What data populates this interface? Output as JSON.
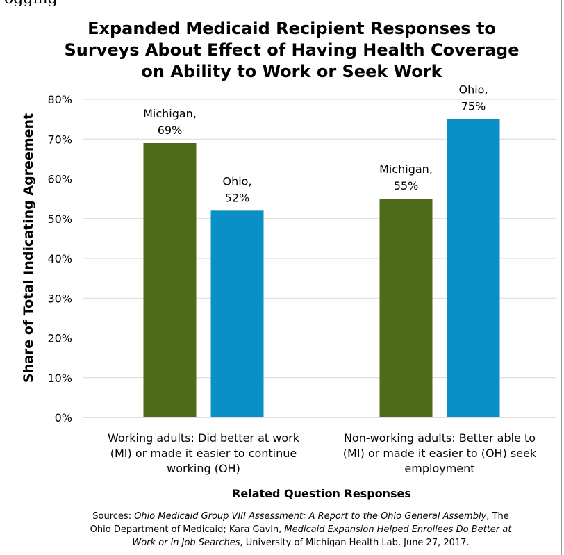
{
  "clipped_heading": "ogging",
  "title_lines": [
    "Expanded Medicaid Recipient Responses to",
    "Surveys About Effect of Having Health Coverage",
    "on Ability to Work or Seek Work"
  ],
  "chart_data": {
    "type": "bar",
    "title": "Expanded Medicaid Recipient Responses to Surveys About Effect of Having Health Coverage on Ability to Work or Seek Work",
    "xlabel": "Related Question Responses",
    "ylabel": "Share of Total Indicating Agreement",
    "ylim": [
      0,
      80
    ],
    "yticks": [
      "0%",
      "10%",
      "20%",
      "30%",
      "40%",
      "50%",
      "60%",
      "70%",
      "80%"
    ],
    "grid": true,
    "categories": [
      [
        "Working adults: Did better at work",
        "(MI) or made it easier to continue",
        "working (OH)"
      ],
      [
        "Non-working adults: Better able to",
        "(MI) or made it easier to (OH) seek",
        "employment"
      ]
    ],
    "series": [
      {
        "name": "Michigan",
        "color": "#4e6b1c",
        "values": [
          69,
          55
        ],
        "labels": [
          [
            "Michigan,",
            "69%"
          ],
          [
            "Michigan,",
            "55%"
          ]
        ]
      },
      {
        "name": "Ohio",
        "color": "#0a8fc6",
        "values": [
          52,
          75
        ],
        "labels": [
          [
            "Ohio,",
            "52%"
          ],
          [
            "Ohio,",
            "75%"
          ]
        ]
      }
    ]
  },
  "sources": {
    "line1_prefix": "Sources: ",
    "line1_italic": "Ohio Medicaid Group VIII Assessment: A Report to the Ohio General Assembly",
    "line1_suffix": ", The",
    "line2_prefix": "Ohio Department of Medicaid; Kara Gavin, ",
    "line2_italic": "Medicaid Expansion Helped Enrollees Do Better at",
    "line3_italic": "Work or in Job Searches",
    "line3_suffix": ", University of Michigan Health Lab, June 27, 2017."
  }
}
